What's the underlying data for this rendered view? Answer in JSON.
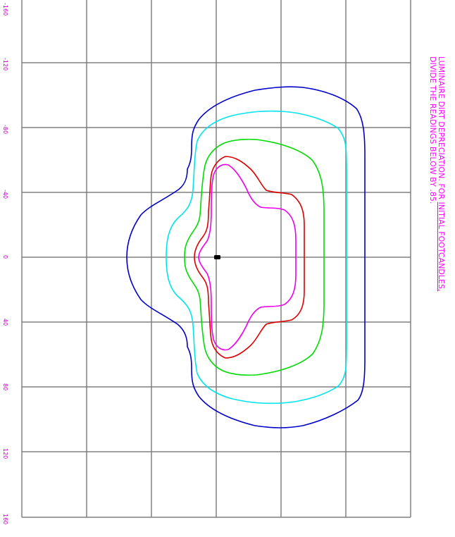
{
  "diagram": {
    "type": "isofootcandle-plot",
    "tick_labels": [
      "-160",
      "-120",
      "-80",
      "-40",
      "0",
      "40",
      "80",
      "120",
      "160"
    ],
    "note": {
      "line1_plain": "LUMINAIRE DIRT DEPRECIATION. FOR ",
      "line1_underlined": "INITIAL FOOTCANDLES,",
      "line2": "DIVIDE THE READINGS BELOW BY .85."
    },
    "colors": {
      "grid": "#808080",
      "text": "#ff00ff",
      "contour_outer": "#0000cc",
      "contour_2": "#00e5ee",
      "contour_3": "#00dd00",
      "contour_4": "#dd0000",
      "contour_inner": "#ee00ee",
      "fixture": "#000000"
    }
  }
}
